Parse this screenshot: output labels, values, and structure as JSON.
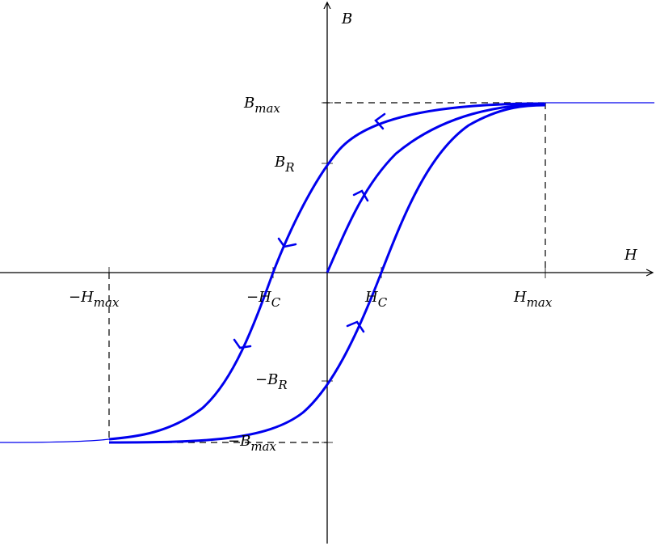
{
  "axes": {
    "x_label": "H",
    "y_label": "B"
  },
  "labels": [
    {
      "main": "B",
      "sub": "max"
    },
    {
      "main": "B",
      "sub": "R"
    },
    {
      "main": "−B",
      "sub": "R"
    },
    {
      "main": "−B",
      "sub": "max"
    },
    {
      "main": "−H",
      "sub": "max"
    },
    {
      "main": "−H",
      "sub": "C"
    },
    {
      "main": "H",
      "sub": "C"
    },
    {
      "main": "H",
      "sub": "max"
    }
  ]
}
